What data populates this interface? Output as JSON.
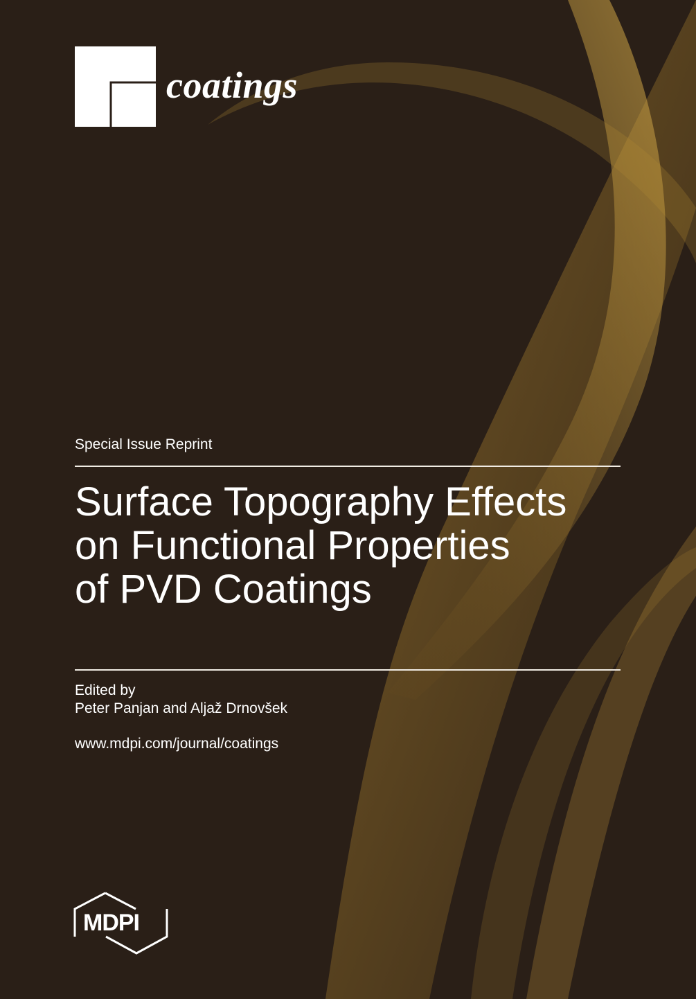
{
  "journal": "coatings",
  "label": "Special Issue Reprint",
  "title": {
    "lines": [
      "Surface Topography Effects",
      "on Functional Properties",
      "of PVD Coatings"
    ]
  },
  "edited_by": "Edited by",
  "editors": "Peter Panjan and Aljaž Drnovšek",
  "url": "www.mdpi.com/journal/coatings",
  "publisher": "MDPI"
}
